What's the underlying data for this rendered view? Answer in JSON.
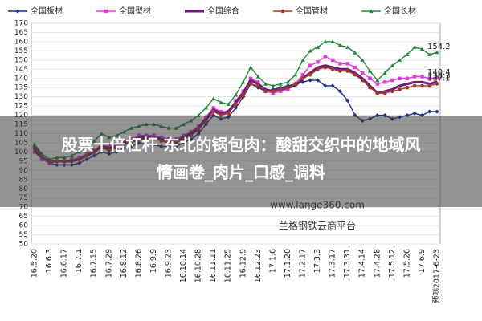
{
  "chart_data": {
    "type": "line",
    "categories": [
      "16.5.20",
      null,
      "16.6.3",
      null,
      "16.6.17",
      null,
      "16.7.1",
      null,
      "16.7.15",
      null,
      "16.7.29",
      null,
      "16.8.12",
      null,
      "16.8.26",
      null,
      "16.9.9",
      null,
      "16.9.23",
      null,
      "16.10.14",
      null,
      "16.10.28",
      null,
      "16.11.11",
      null,
      "16.11.25",
      null,
      "16.12.9",
      null,
      "16.12.23",
      null,
      "17.1.6",
      null,
      "17.1.20",
      null,
      "17.2.17",
      null,
      "17.3.3",
      null,
      "17.3.17",
      null,
      "17.3.31",
      null,
      "17.4.14",
      null,
      "17.4.28",
      null,
      "17.5.12",
      null,
      "17.5.26",
      null,
      "17.6.9",
      null,
      "预测2017-6-23"
    ],
    "series": [
      {
        "name": "全国板材",
        "color": "#1f2f8a",
        "marker": "diamond",
        "end_label": false,
        "values": [
          103,
          98,
          94,
          93,
          93,
          93,
          94,
          96,
          98,
          100,
          99,
          100,
          102,
          103,
          105,
          104,
          104,
          103,
          103,
          103,
          105,
          107,
          110,
          115,
          120,
          118,
          119,
          124,
          130,
          137,
          135,
          133,
          134,
          135,
          136,
          137,
          138,
          139,
          139,
          136,
          136,
          133,
          128,
          120,
          117,
          118,
          120,
          120,
          118,
          119,
          120,
          121,
          120,
          122,
          122
        ]
      },
      {
        "name": "全国型材",
        "color": "#e03ce0",
        "marker": "square",
        "end_label": true,
        "values": [
          100,
          96,
          94,
          95,
          95,
          96,
          97,
          99,
          101,
          104,
          103,
          104,
          106,
          107,
          109,
          109,
          109,
          108,
          107,
          107,
          109,
          111,
          114,
          119,
          124,
          122,
          122,
          128,
          133,
          140,
          138,
          133,
          132,
          133,
          134,
          137,
          142,
          147,
          149,
          152,
          150,
          148,
          148,
          146,
          143,
          140,
          137,
          138,
          139,
          140,
          140,
          141,
          141,
          140,
          140.4
        ]
      },
      {
        "name": "全国综合",
        "color": "#6b1a78",
        "marker": "none",
        "end_label": true,
        "values": [
          101,
          97,
          95,
          95,
          95,
          95,
          96,
          98,
          100,
          103,
          102,
          103,
          105,
          106,
          108,
          108,
          108,
          107,
          106,
          106,
          108,
          110,
          113,
          118,
          123,
          121,
          122,
          127,
          132,
          139,
          137,
          134,
          133,
          134,
          135,
          136,
          140,
          143,
          146,
          147,
          146,
          145,
          145,
          143,
          140,
          136,
          132,
          133,
          134,
          136,
          137,
          138,
          138,
          137,
          138.3
        ]
      },
      {
        "name": "全国管材",
        "color": "#a3392a",
        "marker": "circle",
        "end_label": true,
        "values": [
          102,
          97,
          95,
          95,
          95,
          95,
          96,
          98,
          100,
          102,
          101,
          102,
          104,
          105,
          107,
          107,
          107,
          106,
          105,
          105,
          107,
          109,
          112,
          117,
          122,
          120,
          121,
          126,
          131,
          137,
          136,
          133,
          133,
          134,
          135,
          137,
          140,
          142,
          145,
          146,
          145,
          144,
          144,
          142,
          139,
          135,
          132,
          132,
          133,
          134,
          135,
          136,
          136,
          136,
          137.1
        ]
      },
      {
        "name": "全国长材",
        "color": "#1e8a38",
        "marker": "triangle",
        "end_label": true,
        "values": [
          104,
          99,
          96,
          97,
          97,
          98,
          100,
          103,
          106,
          110,
          108,
          109,
          111,
          113,
          114,
          115,
          115,
          114,
          113,
          113,
          115,
          117,
          120,
          124,
          129,
          127,
          126,
          131,
          138,
          146,
          141,
          137,
          136,
          137,
          138,
          142,
          150,
          155,
          157,
          160,
          160,
          158,
          157,
          154,
          150,
          144,
          139,
          143,
          147,
          150,
          153,
          157,
          156,
          153,
          154.2
        ]
      }
    ],
    "ylim": [
      50,
      170
    ],
    "yticks": [
      50,
      55,
      60,
      65,
      70,
      75,
      80,
      85,
      90,
      95,
      100,
      105,
      110,
      115,
      120,
      125,
      130,
      135,
      140,
      145,
      150,
      155,
      160,
      165,
      170
    ],
    "grid": true,
    "legend": "top",
    "watermark": [
      "www.lange360.com",
      "兰格钢铁云商平台"
    ],
    "banner": [
      "股票十倍杠杆 东北的锅包肉：酸甜交织中的地域风",
      "情画卷_肉片_口感_调料"
    ]
  }
}
